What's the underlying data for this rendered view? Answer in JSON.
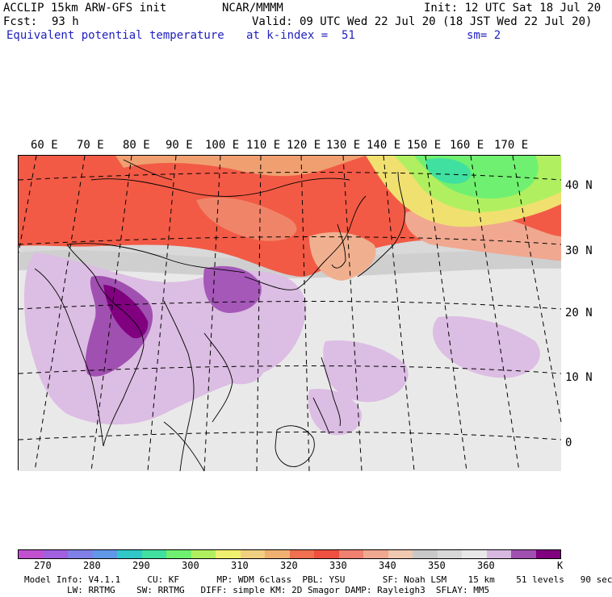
{
  "header": {
    "model": "ACCLIP 15km ARW-GFS init",
    "center": "NCAR/MMMM",
    "init": "Init: 12 UTC Sat 18 Jul 20",
    "fcst_label": "Fcst:",
    "fcst_value": "93 h",
    "valid": "Valid: 09 UTC Wed 22 Jul 20 (18 JST Wed 22 Jul 20)",
    "field": "Equivalent potential temperature",
    "level": "at k-index =  51",
    "smoothing": "sm= 2"
  },
  "map": {
    "lon_labels": [
      "60 E",
      "70 E",
      "80 E",
      "90 E",
      "100 E",
      "110 E",
      "120 E",
      "130 E",
      "140 E",
      "150 E",
      "160 E",
      "170 E"
    ],
    "lat_labels": [
      "40 N",
      "30 N",
      "20 N",
      "10 N",
      "0"
    ]
  },
  "colorbar": {
    "colors": [
      "#c050d0",
      "#a060e0",
      "#8080e8",
      "#6098e8",
      "#30c8c8",
      "#40e0a0",
      "#70f070",
      "#b0f060",
      "#f0f070",
      "#f0d080",
      "#f0b070",
      "#f07050",
      "#f05040",
      "#f08070",
      "#f0a890",
      "#f0c8b0",
      "#c8c8c8",
      "#d8d8d8",
      "#e8e8e8",
      "#d8b8e0",
      "#a050b0",
      "#800080"
    ],
    "labels": [
      "270",
      "280",
      "290",
      "300",
      "310",
      "320",
      "330",
      "340",
      "350",
      "360"
    ],
    "unit": "K"
  },
  "footer": {
    "line1": "Model Info: V4.1.1     CU: KF       MP: WDM 6class  PBL: YSU       SF: Noah LSM    15 km    51 levels   90 sec",
    "line2": "        LW: RRTMG    SW: RRTMG   DIFF: simple KM: 2D Smagor DAMP: Rayleigh3  SFLAY: MM5"
  }
}
